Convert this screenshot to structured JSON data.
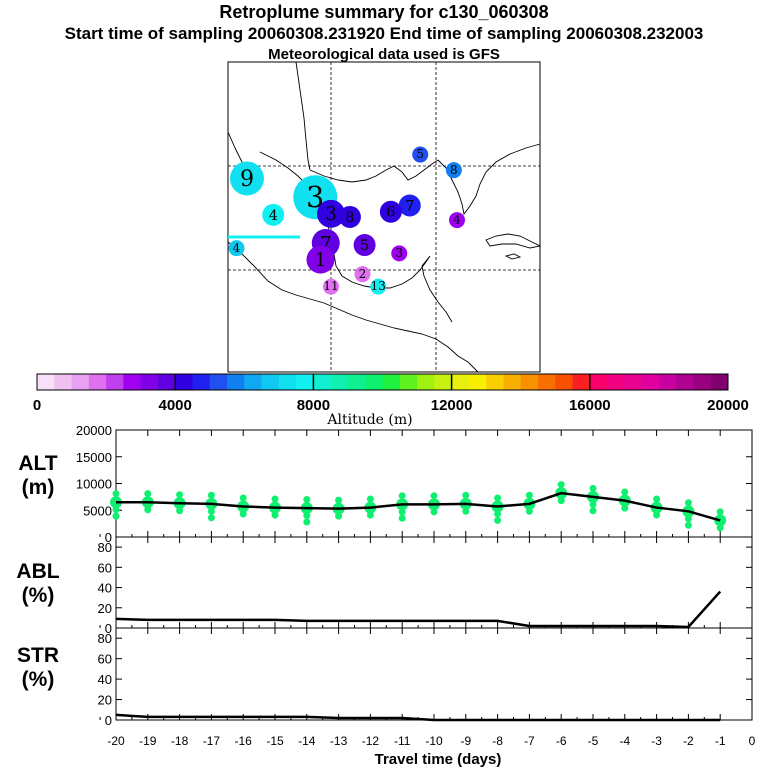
{
  "header": {
    "title": "Retroplume summary for c130_060308",
    "subtitle": "Start time of sampling 20060308.231920     End time of sampling 20060308.232003",
    "met": "Meteorological data used is GFS"
  },
  "colorbar": {
    "label": "Altitude (m)",
    "ticks": [
      "0",
      "4000",
      "8000",
      "12000",
      "16000",
      "20000"
    ],
    "colors": [
      "#f8e0f8",
      "#f0c0f0",
      "#e8a0f0",
      "#e070f0",
      "#c040f0",
      "#a000f0",
      "#8000e8",
      "#6000e0",
      "#3000e0",
      "#2020f0",
      "#2050f0",
      "#1080f0",
      "#10a8f0",
      "#10c8f0",
      "#10e0f0",
      "#10f0f0",
      "#10f0d0",
      "#10f0b0",
      "#10f090",
      "#10f070",
      "#20f040",
      "#60f020",
      "#a0f010",
      "#c8f010",
      "#e8f010",
      "#f8f000",
      "#f8d000",
      "#f8b000",
      "#f89000",
      "#f87000",
      "#f85000",
      "#f82020",
      "#f8006a",
      "#f00080",
      "#e80090",
      "#e000a0",
      "#c800a0",
      "#b00090",
      "#980080",
      "#800070"
    ]
  },
  "map": {
    "markers": [
      {
        "label": "9",
        "lon": -103,
        "lat": 28.8,
        "alt": 7200,
        "size": 4
      },
      {
        "label": "3",
        "lon": -96.5,
        "lat": 27.0,
        "alt": 7400,
        "size": 5
      },
      {
        "label": "4",
        "lon": -100.5,
        "lat": 25.3,
        "alt": 7600,
        "size": 2
      },
      {
        "label": "4",
        "lon": -104,
        "lat": 22.1,
        "alt": 6900,
        "size": 1
      },
      {
        "label": "5",
        "lon": -86.5,
        "lat": 31.1,
        "alt": 5200,
        "size": 1
      },
      {
        "label": "8",
        "lon": -83.3,
        "lat": 29.6,
        "alt": 5500,
        "size": 1
      },
      {
        "label": "7",
        "lon": -87.5,
        "lat": 26.2,
        "alt": 4600,
        "size": 2
      },
      {
        "label": "6",
        "lon": -89.3,
        "lat": 25.6,
        "alt": 4300,
        "size": 2
      },
      {
        "label": "3",
        "lon": -95.0,
        "lat": 25.4,
        "alt": 4100,
        "size": 3
      },
      {
        "label": "8",
        "lon": -93.2,
        "lat": 25.1,
        "alt": 4100,
        "size": 2
      },
      {
        "label": "5",
        "lon": -91.8,
        "lat": 22.4,
        "alt": 3900,
        "size": 2
      },
      {
        "label": "4",
        "lon": -83.0,
        "lat": 24.8,
        "alt": 2900,
        "size": 1
      },
      {
        "label": "3",
        "lon": -88.5,
        "lat": 21.6,
        "alt": 2600,
        "size": 1
      },
      {
        "label": "7",
        "lon": -95.5,
        "lat": 22.6,
        "alt": 3700,
        "size": 3
      },
      {
        "label": "1",
        "lon": -96.0,
        "lat": 21.0,
        "alt": 3200,
        "size": 3
      },
      {
        "label": "2",
        "lon": -92.0,
        "lat": 19.6,
        "alt": 1800,
        "size": 1
      },
      {
        "label": "11",
        "lon": -95.0,
        "lat": 18.4,
        "alt": 1500,
        "size": 1
      },
      {
        "label": "13",
        "lon": -90.5,
        "lat": 18.4,
        "alt": 7600,
        "size": 1
      }
    ]
  },
  "panels": {
    "alt": {
      "label1": "ALT",
      "label2": "(m)",
      "yticks": [
        "0",
        "5000",
        "10000",
        "15000",
        "20000"
      ]
    },
    "abl": {
      "label1": "ABL",
      "label2": "(%)",
      "yticks": [
        "0",
        "20",
        "40",
        "60",
        "80"
      ]
    },
    "str": {
      "label1": "STR",
      "label2": "(%)",
      "yticks": [
        "0",
        "20",
        "40",
        "60",
        "80"
      ]
    }
  },
  "xaxis": {
    "label": "Travel time (days)",
    "ticks": [
      "-20",
      "-19",
      "-18",
      "-17",
      "-16",
      "-15",
      "-14",
      "-13",
      "-12",
      "-11",
      "-10",
      "-9",
      "-8",
      "-7",
      "-6",
      "-5",
      "-4",
      "-3",
      "-2",
      "-1",
      "0"
    ]
  },
  "chart_data": [
    {
      "type": "line",
      "title": "ALT",
      "xlabel": "Travel time (days)",
      "ylabel": "(m)",
      "xlim": [
        -20,
        0
      ],
      "ylim": [
        0,
        20000
      ],
      "x": [
        -20,
        -19,
        -18,
        -17,
        -16,
        -15,
        -14,
        -13,
        -12,
        -11,
        -10,
        -9,
        -8,
        -7,
        -6,
        -5,
        -4,
        -3,
        -2,
        -1
      ],
      "values": [
        6500,
        6500,
        6300,
        6200,
        5700,
        5500,
        5400,
        5300,
        5500,
        6100,
        6100,
        6200,
        5700,
        6200,
        8200,
        7500,
        6800,
        5500,
        4800,
        3100
      ]
    },
    {
      "type": "line",
      "title": "ABL",
      "ylabel": "(%)",
      "xlim": [
        -20,
        0
      ],
      "ylim": [
        0,
        90
      ],
      "x": [
        -20,
        -19,
        -18,
        -17,
        -16,
        -15,
        -14,
        -13,
        -12,
        -11,
        -10,
        -9,
        -8,
        -7,
        -6,
        -5,
        -4,
        -3,
        -2,
        -1
      ],
      "values": [
        9,
        8,
        8,
        8,
        8,
        8,
        7,
        7,
        7,
        7,
        7,
        7,
        7,
        2,
        2,
        2,
        2,
        2,
        1,
        36
      ]
    },
    {
      "type": "line",
      "title": "STR",
      "ylabel": "(%)",
      "xlim": [
        -20,
        0
      ],
      "ylim": [
        0,
        90
      ],
      "x": [
        -20,
        -19,
        -18,
        -17,
        -16,
        -15,
        -14,
        -13,
        -12,
        -11,
        -10,
        -9,
        -8,
        -7,
        -6,
        -5,
        -4,
        -3,
        -2,
        -1
      ],
      "values": [
        5,
        3,
        3,
        3,
        3,
        3,
        3,
        2,
        2,
        2,
        0,
        0,
        0,
        0,
        0,
        0,
        0,
        0,
        0,
        0
      ]
    }
  ]
}
